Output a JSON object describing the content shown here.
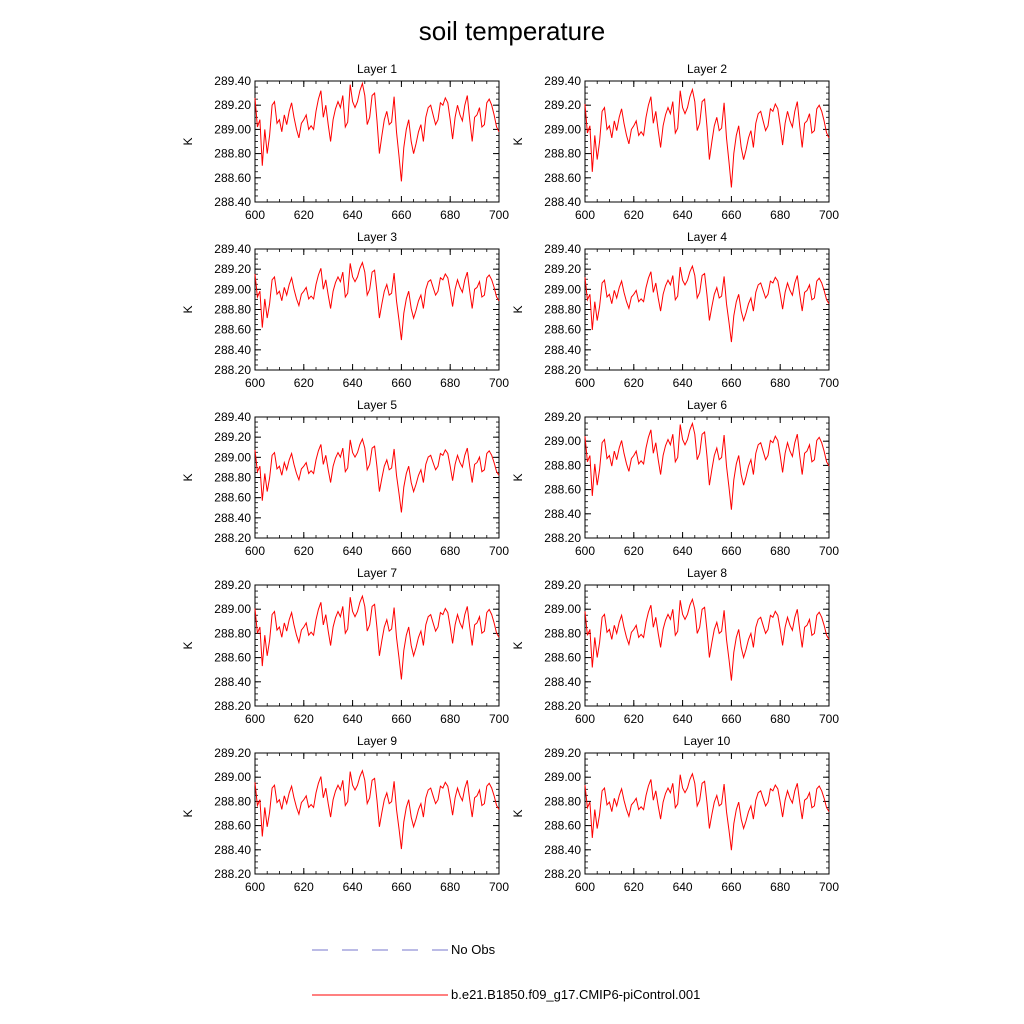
{
  "title": "soil temperature",
  "legend": {
    "items": [
      {
        "label": "No Obs",
        "color": "#7777cc",
        "style": "dashed"
      },
      {
        "label": "b.e21.B1850.f09_g17.CMIP6-piControl.001",
        "color": "#ff0000",
        "style": "solid"
      }
    ]
  },
  "chart_data": [
    {
      "type": "line",
      "title": "Layer 1",
      "ylabel": "K",
      "xlim": [
        600,
        700
      ],
      "ylim": [
        288.4,
        289.4
      ],
      "xticks": [
        "600",
        "620",
        "640",
        "660",
        "680",
        "700"
      ],
      "yticks": [
        "288.40",
        "288.60",
        "288.80",
        "289.00",
        "289.20",
        "289.40"
      ],
      "x_start": 600,
      "x_step": 1,
      "series": [
        {
          "color": "#ff0000",
          "offset": 0.1,
          "scale": 1.0,
          "values": []
        }
      ]
    },
    {
      "type": "line",
      "title": "Layer 2",
      "ylabel": "K",
      "xlim": [
        600,
        700
      ],
      "ylim": [
        288.4,
        289.4
      ],
      "xticks": [
        "600",
        "620",
        "640",
        "660",
        "680",
        "700"
      ],
      "yticks": [
        "288.40",
        "288.60",
        "288.80",
        "289.00",
        "289.20",
        "289.40"
      ],
      "x_start": 600,
      "x_step": 1,
      "series": [
        {
          "color": "#ff0000",
          "offset": 0.05,
          "scale": 1.0,
          "values": []
        }
      ]
    },
    {
      "type": "line",
      "title": "Layer 3",
      "ylabel": "K",
      "xlim": [
        600,
        700
      ],
      "ylim": [
        288.2,
        289.4
      ],
      "xticks": [
        "600",
        "620",
        "640",
        "660",
        "680",
        "700"
      ],
      "yticks": [
        "288.20",
        "288.40",
        "288.60",
        "288.80",
        "289.00",
        "289.20",
        "289.40"
      ],
      "x_start": 600,
      "x_step": 1,
      "series": [
        {
          "color": "#ff0000",
          "offset": 0.0,
          "scale": 0.95,
          "values": []
        }
      ]
    },
    {
      "type": "line",
      "title": "Layer 4",
      "ylabel": "K",
      "xlim": [
        600,
        700
      ],
      "ylim": [
        288.2,
        289.4
      ],
      "xticks": [
        "600",
        "620",
        "640",
        "660",
        "680",
        "700"
      ],
      "yticks": [
        "288.20",
        "288.40",
        "288.60",
        "288.80",
        "289.00",
        "289.20",
        "289.40"
      ],
      "x_start": 600,
      "x_step": 1,
      "series": [
        {
          "color": "#ff0000",
          "offset": -0.03,
          "scale": 0.93,
          "values": []
        }
      ]
    },
    {
      "type": "line",
      "title": "Layer 5",
      "ylabel": "K",
      "xlim": [
        600,
        700
      ],
      "ylim": [
        288.2,
        289.4
      ],
      "xticks": [
        "600",
        "620",
        "640",
        "660",
        "680",
        "700"
      ],
      "yticks": [
        "288.20",
        "288.40",
        "288.60",
        "288.80",
        "289.00",
        "289.20",
        "289.40"
      ],
      "x_start": 600,
      "x_step": 1,
      "series": [
        {
          "color": "#ff0000",
          "offset": -0.07,
          "scale": 0.9,
          "values": []
        }
      ]
    },
    {
      "type": "line",
      "title": "Layer 6",
      "ylabel": "K",
      "xlim": [
        600,
        700
      ],
      "ylim": [
        288.2,
        289.2
      ],
      "xticks": [
        "600",
        "620",
        "640",
        "660",
        "680",
        "700"
      ],
      "yticks": [
        "288.20",
        "288.40",
        "288.60",
        "288.80",
        "289.00",
        "289.20"
      ],
      "x_start": 600,
      "x_step": 1,
      "series": [
        {
          "color": "#ff0000",
          "offset": -0.1,
          "scale": 0.88,
          "values": []
        }
      ]
    },
    {
      "type": "line",
      "title": "Layer 7",
      "ylabel": "K",
      "xlim": [
        600,
        700
      ],
      "ylim": [
        288.2,
        289.2
      ],
      "xticks": [
        "600",
        "620",
        "640",
        "660",
        "680",
        "700"
      ],
      "yticks": [
        "288.20",
        "288.40",
        "288.60",
        "288.80",
        "289.00",
        "289.20"
      ],
      "x_start": 600,
      "x_step": 1,
      "series": [
        {
          "color": "#ff0000",
          "offset": -0.13,
          "scale": 0.85,
          "values": []
        }
      ]
    },
    {
      "type": "line",
      "title": "Layer 8",
      "ylabel": "K",
      "xlim": [
        600,
        700
      ],
      "ylim": [
        288.2,
        289.2
      ],
      "xticks": [
        "600",
        "620",
        "640",
        "660",
        "680",
        "700"
      ],
      "yticks": [
        "288.20",
        "288.40",
        "288.60",
        "288.80",
        "289.00",
        "289.20"
      ],
      "x_start": 600,
      "x_step": 1,
      "series": [
        {
          "color": "#ff0000",
          "offset": -0.15,
          "scale": 0.83,
          "values": []
        }
      ]
    },
    {
      "type": "line",
      "title": "Layer 9",
      "ylabel": "K",
      "xlim": [
        600,
        700
      ],
      "ylim": [
        288.2,
        289.2
      ],
      "xticks": [
        "600",
        "620",
        "640",
        "660",
        "680",
        "700"
      ],
      "yticks": [
        "288.20",
        "288.40",
        "288.60",
        "288.80",
        "289.00",
        "289.20"
      ],
      "x_start": 600,
      "x_step": 1,
      "series": [
        {
          "color": "#ff0000",
          "offset": -0.17,
          "scale": 0.8,
          "values": []
        }
      ]
    },
    {
      "type": "line",
      "title": "Layer 10",
      "ylabel": "K",
      "xlim": [
        600,
        700
      ],
      "ylim": [
        288.2,
        289.2
      ],
      "xticks": [
        "600",
        "620",
        "640",
        "660",
        "680",
        "700"
      ],
      "yticks": [
        "288.20",
        "288.40",
        "288.60",
        "288.80",
        "289.00",
        "289.20"
      ],
      "x_start": 600,
      "x_step": 1,
      "series": [
        {
          "color": "#ff0000",
          "offset": -0.19,
          "scale": 0.78,
          "values": []
        }
      ]
    }
  ],
  "base_anomaly": [
    0.16,
    -0.08,
    -0.02,
    -0.4,
    -0.1,
    -0.3,
    -0.15,
    0.1,
    0.13,
    -0.05,
    -0.02,
    -0.12,
    0.02,
    -0.06,
    0.05,
    0.12,
    0.0,
    -0.1,
    -0.17,
    -0.05,
    -0.02,
    0.02,
    -0.1,
    -0.07,
    -0.1,
    0.05,
    0.15,
    0.22,
    0.0,
    0.1,
    -0.06,
    -0.2,
    -0.02,
    0.07,
    0.13,
    0.08,
    0.18,
    -0.08,
    -0.04,
    0.27,
    0.13,
    0.08,
    0.13,
    0.22,
    0.28,
    0.18,
    -0.06,
    0.0,
    0.18,
    0.2,
    -0.03,
    -0.3,
    -0.15,
    -0.02,
    0.05,
    -0.06,
    -0.04,
    0.17,
    -0.12,
    -0.32,
    -0.53,
    -0.25,
    -0.1,
    -0.02,
    -0.2,
    -0.3,
    -0.22,
    -0.12,
    -0.06,
    -0.2,
    0.0,
    0.08,
    0.1,
    0.02,
    -0.06,
    -0.02,
    0.12,
    0.1,
    0.16,
    0.12,
    -0.02,
    -0.18,
    0.0,
    0.1,
    0.02,
    -0.03,
    0.1,
    0.18,
    -0.02,
    -0.2,
    0.0,
    0.02,
    0.08,
    -0.08,
    -0.06,
    0.12,
    0.15,
    0.1,
    0.02,
    -0.08,
    -0.12
  ]
}
